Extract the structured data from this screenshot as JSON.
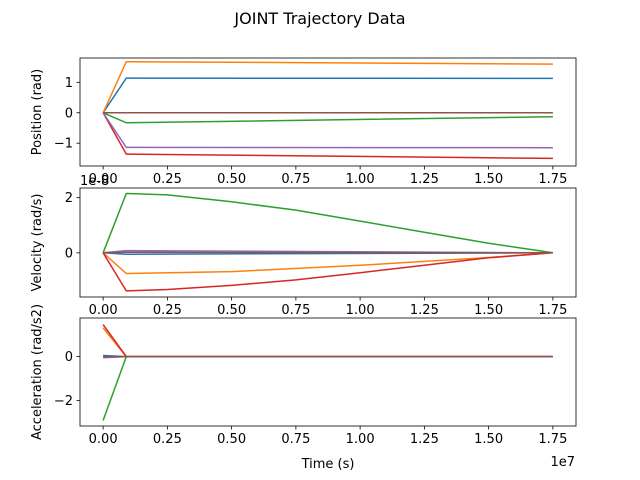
{
  "figure": {
    "title": "JOINT Trajectory Data",
    "xlabel": "Time (s)",
    "x_offset_label": "1e7",
    "bottom_offset_label": "1e-8",
    "colors": [
      "#1f77b4",
      "#ff7f0e",
      "#2ca02c",
      "#d62728",
      "#9467bd",
      "#8c564b"
    ]
  },
  "chart_data": [
    {
      "type": "line",
      "ylabel": "Position (rad)",
      "xlim": [
        -0.09,
        1.84
      ],
      "ylim": [
        -1.75,
        1.8
      ],
      "xticks": [
        0.0,
        0.25,
        0.5,
        0.75,
        1.0,
        1.25,
        1.5,
        1.75
      ],
      "xtick_labels": [
        "0.00",
        "0.25",
        "0.50",
        "0.75",
        "1.00",
        "1.25",
        "1.50",
        "1.75"
      ],
      "yticks": [
        -1,
        0,
        1
      ],
      "ytick_labels": [
        "−1",
        "0",
        "1"
      ],
      "series": [
        {
          "color": "#1f77b4",
          "x": [
            0,
            0.09,
            1.75
          ],
          "y": [
            0,
            1.14,
            1.13
          ]
        },
        {
          "color": "#ff7f0e",
          "x": [
            0,
            0.09,
            1.75
          ],
          "y": [
            0,
            1.68,
            1.6
          ]
        },
        {
          "color": "#2ca02c",
          "x": [
            0,
            0.09,
            1.75
          ],
          "y": [
            0,
            -0.33,
            -0.13
          ]
        },
        {
          "color": "#d62728",
          "x": [
            0,
            0.09,
            1.75
          ],
          "y": [
            0,
            -1.36,
            -1.5
          ]
        },
        {
          "color": "#9467bd",
          "x": [
            0,
            0.09,
            1.75
          ],
          "y": [
            0,
            -1.14,
            -1.15
          ]
        },
        {
          "color": "#8c564b",
          "x": [
            0,
            0.09,
            1.75
          ],
          "y": [
            0,
            0.0,
            0.0
          ]
        }
      ]
    },
    {
      "type": "line",
      "ylabel": "Velocity (rad/s)",
      "xlim": [
        -0.09,
        1.84
      ],
      "ylim": [
        -1.6,
        2.35
      ],
      "xticks": [
        0.0,
        0.25,
        0.5,
        0.75,
        1.0,
        1.25,
        1.5,
        1.75
      ],
      "xtick_labels": [
        "0.00",
        "0.25",
        "0.50",
        "0.75",
        "1.00",
        "1.25",
        "1.50",
        "1.75"
      ],
      "yticks": [
        0,
        2
      ],
      "ytick_labels": [
        "0",
        "2"
      ],
      "series": [
        {
          "color": "#1f77b4",
          "x": [
            0,
            0.09,
            1.75
          ],
          "y": [
            0,
            -0.05,
            0
          ]
        },
        {
          "color": "#ff7f0e",
          "x": [
            0,
            0.09,
            0.5,
            1.0,
            1.5,
            1.75
          ],
          "y": [
            0,
            -0.75,
            -0.68,
            -0.45,
            -0.17,
            0
          ]
        },
        {
          "color": "#2ca02c",
          "x": [
            0,
            0.09,
            0.25,
            0.5,
            0.75,
            1.0,
            1.25,
            1.5,
            1.75
          ],
          "y": [
            0,
            2.15,
            2.1,
            1.85,
            1.55,
            1.15,
            0.75,
            0.35,
            0
          ]
        },
        {
          "color": "#d62728",
          "x": [
            0,
            0.09,
            0.25,
            0.5,
            0.75,
            1.0,
            1.25,
            1.5,
            1.75
          ],
          "y": [
            0,
            -1.38,
            -1.33,
            -1.18,
            -0.98,
            -0.72,
            -0.45,
            -0.18,
            0
          ]
        },
        {
          "color": "#9467bd",
          "x": [
            0,
            0.09,
            1.75
          ],
          "y": [
            0,
            0.08,
            0
          ]
        },
        {
          "color": "#8c564b",
          "x": [
            0,
            0.09,
            1.75
          ],
          "y": [
            0,
            0.02,
            0
          ]
        }
      ]
    },
    {
      "type": "line",
      "ylabel": "Acceleration (rad/s2)",
      "xlim": [
        -0.09,
        1.84
      ],
      "ylim": [
        -3.15,
        1.75
      ],
      "xticks": [
        0.0,
        0.25,
        0.5,
        0.75,
        1.0,
        1.25,
        1.5,
        1.75
      ],
      "xtick_labels": [
        "0.00",
        "0.25",
        "0.50",
        "0.75",
        "1.00",
        "1.25",
        "1.50",
        "1.75"
      ],
      "yticks": [
        -2,
        0
      ],
      "ytick_labels": [
        "−2",
        "0"
      ],
      "series": [
        {
          "color": "#1f77b4",
          "x": [
            0,
            0.09,
            1.75
          ],
          "y": [
            0.05,
            0,
            0
          ]
        },
        {
          "color": "#ff7f0e",
          "x": [
            0,
            0.09,
            1.75
          ],
          "y": [
            1.3,
            0,
            0
          ]
        },
        {
          "color": "#2ca02c",
          "x": [
            0,
            0.09,
            1.75
          ],
          "y": [
            -2.9,
            0,
            0
          ]
        },
        {
          "color": "#d62728",
          "x": [
            0,
            0.09,
            1.75
          ],
          "y": [
            1.45,
            0,
            0
          ]
        },
        {
          "color": "#9467bd",
          "x": [
            0,
            0.09,
            1.75
          ],
          "y": [
            -0.05,
            0,
            0
          ]
        },
        {
          "color": "#8c564b",
          "x": [
            0,
            0.09,
            1.75
          ],
          "y": [
            0.0,
            0,
            0
          ]
        }
      ]
    }
  ]
}
